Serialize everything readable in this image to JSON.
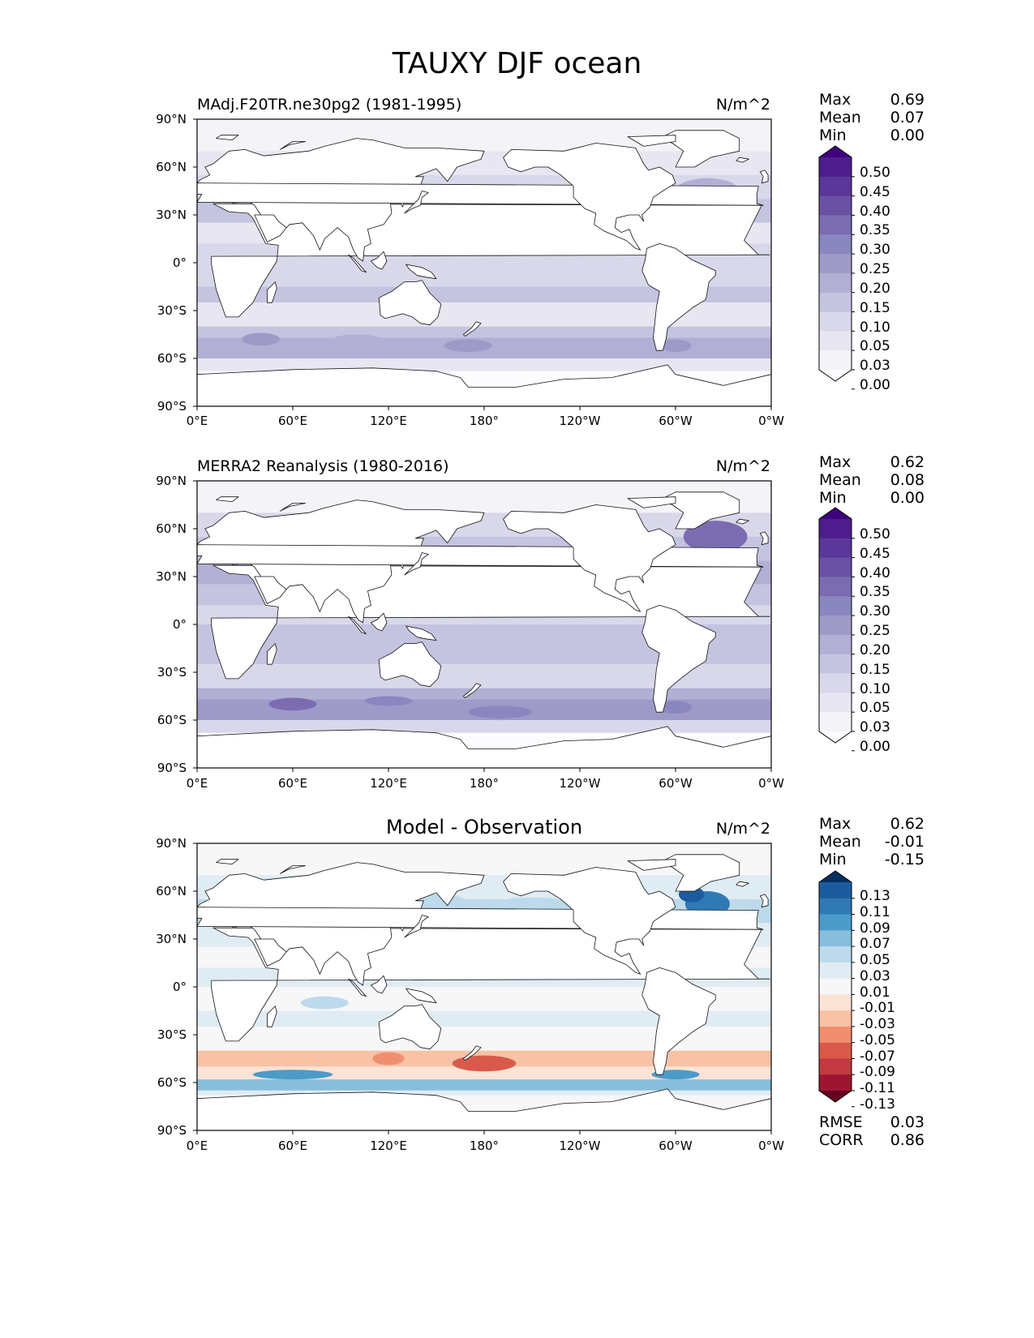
{
  "figure_title": "TAUXY DJF ocean",
  "x_ticks": [
    "0°E",
    "60°E",
    "120°E",
    "180°",
    "120°W",
    "60°W",
    "0°W"
  ],
  "y_ticks": [
    "90°N",
    "60°N",
    "30°N",
    "0°",
    "30°S",
    "60°S",
    "90°S"
  ],
  "panels": [
    {
      "title": "MAdj.F20TR.ne30pg2 (1981-1995)",
      "units": "N/m^2",
      "stats": [
        {
          "label": "Max",
          "value": "0.69"
        },
        {
          "label": "Mean",
          "value": "0.07"
        },
        {
          "label": "Min",
          "value": "0.00"
        }
      ],
      "colorbar": {
        "levels": [
          "0.50",
          "0.45",
          "0.40",
          "0.35",
          "0.30",
          "0.25",
          "0.20",
          "0.15",
          "0.10",
          "0.05",
          "0.03",
          "0.00"
        ],
        "colors": [
          "#3f007d",
          "#4d1d8b",
          "#5b3799",
          "#6a51a3",
          "#7b6cb1",
          "#8a86bf",
          "#9e9ac8",
          "#b1afd4",
          "#c4c3e0",
          "#d8d8ea",
          "#e7e6f1",
          "#f4f3f8",
          "#fcfbfd"
        ]
      },
      "extra": []
    },
    {
      "title": "MERRA2 Reanalysis (1980-2016)",
      "units": "N/m^2",
      "stats": [
        {
          "label": "Max",
          "value": "0.62"
        },
        {
          "label": "Mean",
          "value": "0.08"
        },
        {
          "label": "Min",
          "value": "0.00"
        }
      ],
      "colorbar": {
        "levels": [
          "0.50",
          "0.45",
          "0.40",
          "0.35",
          "0.30",
          "0.25",
          "0.20",
          "0.15",
          "0.10",
          "0.05",
          "0.03",
          "0.00"
        ],
        "colors": [
          "#3f007d",
          "#4d1d8b",
          "#5b3799",
          "#6a51a3",
          "#7b6cb1",
          "#8a86bf",
          "#9e9ac8",
          "#b1afd4",
          "#c4c3e0",
          "#d8d8ea",
          "#e7e6f1",
          "#f4f3f8",
          "#fcfbfd"
        ]
      },
      "extra": []
    },
    {
      "title": "Model - Observation",
      "units": "N/m^2",
      "stats": [
        {
          "label": "Max",
          "value": "0.62"
        },
        {
          "label": "Mean",
          "value": "-0.01"
        },
        {
          "label": "Min",
          "value": "-0.15"
        }
      ],
      "colorbar": {
        "levels": [
          "0.13",
          "0.11",
          "0.09",
          "0.07",
          "0.05",
          "0.03",
          "0.01",
          "-0.01",
          "-0.03",
          "-0.05",
          "-0.07",
          "-0.09",
          "-0.11",
          "-0.13"
        ],
        "colors": [
          "#053061",
          "#1c5c9e",
          "#2f79b5",
          "#4b9bc8",
          "#88bedc",
          "#bcdaeb",
          "#dfecf4",
          "#f7f7f7",
          "#fbe3d6",
          "#f8c2a6",
          "#ef8f70",
          "#d95a4b",
          "#c23a3f",
          "#9e1531",
          "#67001f"
        ]
      },
      "extra": [
        {
          "label": "RMSE",
          "value": "0.03"
        },
        {
          "label": "CORR",
          "value": "0.86"
        }
      ]
    }
  ]
}
